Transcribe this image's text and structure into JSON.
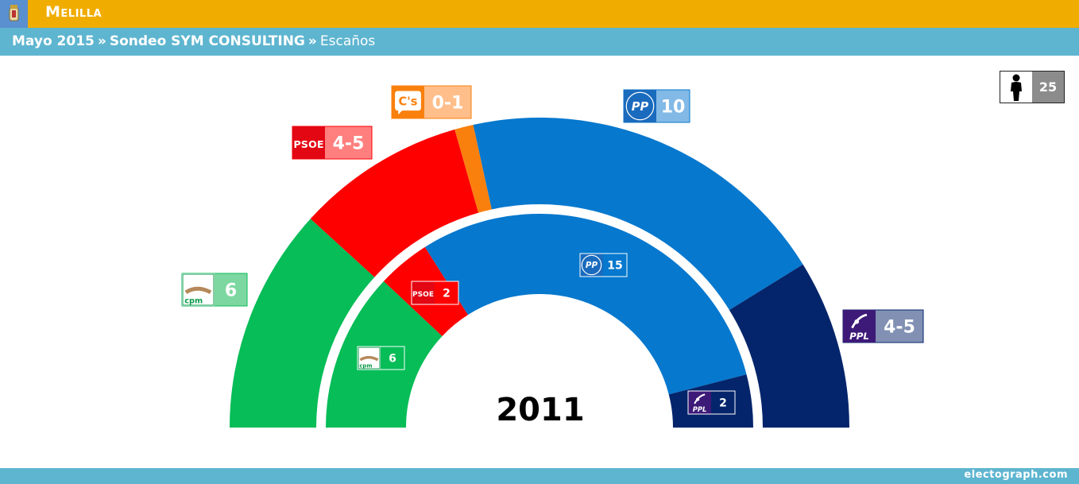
{
  "header": {
    "region": "Melilla"
  },
  "breadcrumb": {
    "election": "Mayo 2015",
    "separator": "»",
    "poll": "Sondeo SYM CONSULTING",
    "view": "Escaños"
  },
  "total_seats": {
    "value": "25"
  },
  "footer": {
    "credit": "electograph.com"
  },
  "chart_data": {
    "type": "parliament_donut",
    "total_seats": 25,
    "rings": [
      {
        "name": "Sondeo SYM CONSULTING",
        "parties": [
          {
            "party": "CPM",
            "logo_text": "cpm",
            "seats": 6,
            "label": "6",
            "color": "#06bd57",
            "label_bg": "#7dd7a0"
          },
          {
            "party": "PSOE",
            "logo_text": "PSOE",
            "seats": 4.5,
            "label": "4-5",
            "color": "#ff0000",
            "label_bg": "#ff7f7f"
          },
          {
            "party": "C's",
            "logo_text": "C's",
            "seats": 0.5,
            "label": "0-1",
            "color": "#fa800d",
            "label_bg": "#ffbe8a"
          },
          {
            "party": "PP",
            "logo_text": "PP",
            "seats": 10,
            "label": "10",
            "color": "#0678ce",
            "label_bg": "#82b9e6"
          },
          {
            "party": "PPL",
            "logo_text": "PPL",
            "seats": 4.5,
            "label": "4-5",
            "color": "#04256b",
            "label_bg": "#8190b3"
          }
        ]
      },
      {
        "name": "2011",
        "parties": [
          {
            "party": "CPM",
            "logo_text": "cpm",
            "seats": 6,
            "label": "6",
            "color": "#06bd57"
          },
          {
            "party": "PSOE",
            "logo_text": "PSOE",
            "seats": 2,
            "label": "2",
            "color": "#ff0000"
          },
          {
            "party": "PP",
            "logo_text": "PP",
            "seats": 15,
            "label": "15",
            "color": "#0678ce"
          },
          {
            "party": "PPL",
            "logo_text": "PPL",
            "seats": 2,
            "label": "2",
            "color": "#04256b"
          }
        ]
      }
    ],
    "year_label": "2011",
    "logo_colors": {
      "PSOE": "#e30613",
      "C's": "#fa800d",
      "PP": "#1a6bbd",
      "PPL": "#3d1a78",
      "CPM": "#0a9a4a"
    }
  }
}
